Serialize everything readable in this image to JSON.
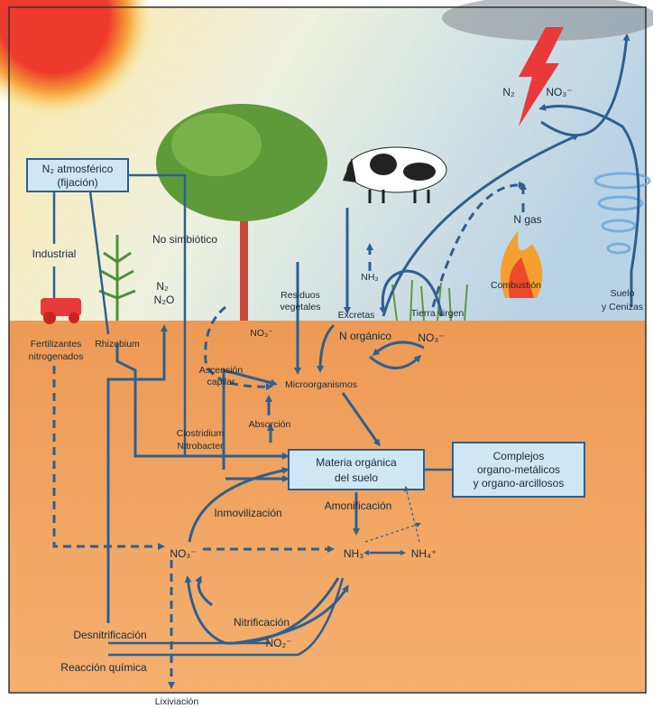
{
  "boxes": {
    "atmospheric": [
      "N₂ atmosférico",
      "(fijación)"
    ],
    "organic_matter": [
      "Materia orgánica",
      "del suelo"
    ],
    "complexes": [
      "Complejos",
      "organo-metálicos",
      "y organo-arcillosos"
    ]
  },
  "labels": {
    "industrial": "Industrial",
    "non_symbiotic": "No simbiótico",
    "n2_n2o": [
      "N₂",
      "N₂O"
    ],
    "fertilizers": [
      "Fertilizantes",
      "nitrogenados"
    ],
    "rhizobium": "Rhizobium",
    "plant_residues": [
      "Residuos",
      "vegetales"
    ],
    "nitrate_roots": "NO₃⁻",
    "capillary_rise": [
      "Ascensión",
      "capilar"
    ],
    "microorganisms": "Microorganismos",
    "excreta": "Excretas",
    "ammonia_top": "NH₃",
    "organic_n": "N orgánico",
    "virgin_land": "Tierra virgen",
    "nitrate_virgin": "NO₃⁻",
    "combustion": "Combustión",
    "n_gas": "N gas",
    "n2_sky": "N₂",
    "nitrate_sky": "NO₃⁻",
    "soil_ash": [
      "Suelo",
      "y Cenizas"
    ],
    "absorption": "Absorción",
    "clostridium": [
      "Clostridium",
      "Nitrobacter"
    ],
    "immobilization": "Inmovilización",
    "ammonification": "Amonificación",
    "nitrate_soil": "NO₃⁻",
    "ammonia_soil": "NH₃",
    "ammonium": "NH₄⁺",
    "nitrification": "Nitrificación",
    "nitrite": "NO₂⁻",
    "denitrification": "Desnitrificación",
    "chemical_reaction": "Reacción química",
    "leaching": "Lixiviación"
  }
}
